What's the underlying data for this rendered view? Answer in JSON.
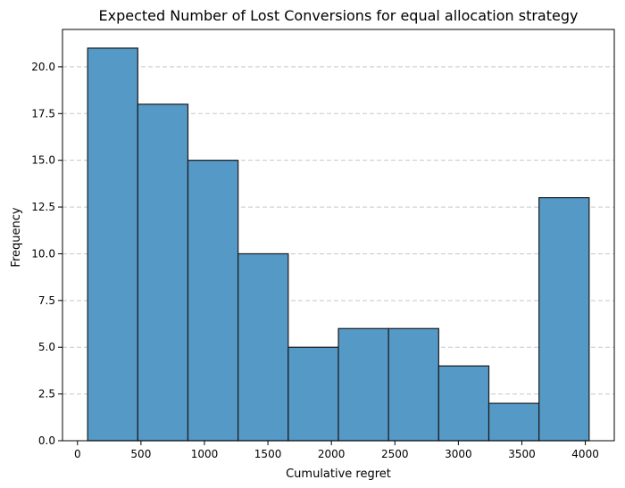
{
  "chart_data": {
    "type": "histogram",
    "title": "Expected Number of Lost Conversions for equal allocation strategy",
    "xlabel": "Cumulative regret",
    "ylabel": "Frequency",
    "bin_edges": [
      80,
      475,
      870,
      1265,
      1660,
      2055,
      2450,
      2845,
      3240,
      3635,
      4030
    ],
    "values": [
      21,
      18,
      15,
      10,
      5,
      6,
      6,
      4,
      2,
      13
    ],
    "xlim": [
      -118,
      4228
    ],
    "ylim": [
      0,
      22
    ],
    "xticks": [
      0,
      500,
      1000,
      1500,
      2000,
      2500,
      3000,
      3500,
      4000
    ],
    "xtick_labels": [
      "0",
      "500",
      "1000",
      "1500",
      "2000",
      "2500",
      "3000",
      "3500",
      "4000"
    ],
    "yticks": [
      0,
      2.5,
      5,
      7.5,
      10,
      12.5,
      15,
      17.5,
      20
    ],
    "ytick_labels": [
      "0.0",
      "2.5",
      "5.0",
      "7.5",
      "10.0",
      "12.5",
      "15.0",
      "17.5",
      "20.0"
    ],
    "grid": "y-axis dashed",
    "colors": {
      "bar_fill": "#5599c7",
      "bar_edge": "#1a1a1a",
      "grid": "#c8c8c8",
      "axis": "#000000"
    }
  }
}
